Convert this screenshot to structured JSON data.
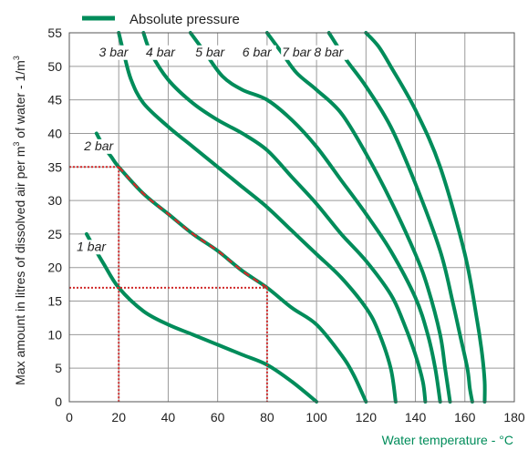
{
  "chart_data": {
    "type": "line",
    "legend": {
      "label": "Absolute pressure",
      "position": "top-left"
    },
    "xlabel": "Water temperature - °C",
    "ylabel_main": "Max amount in litres of dissolved air per m",
    "ylabel_sup": "3",
    "ylabel_rest": " of water - 1/m",
    "ylabel_sup2": "3",
    "xlim": [
      0,
      180
    ],
    "ylim": [
      0,
      55
    ],
    "xticks": [
      "0",
      "20",
      "40",
      "60",
      "80",
      "100",
      "120",
      "140",
      "160",
      "180"
    ],
    "yticks": [
      "0",
      "5",
      "10",
      "15",
      "20",
      "25",
      "30",
      "35",
      "40",
      "45",
      "50",
      "55"
    ],
    "grid": true,
    "series": [
      {
        "name": "1 bar",
        "x": [
          7,
          10,
          14,
          20,
          30,
          40,
          50,
          60,
          70,
          80,
          90,
          100
        ],
        "y": [
          25,
          23,
          20.5,
          17,
          13.5,
          11.5,
          10,
          8.5,
          7,
          5.5,
          3,
          0
        ]
      },
      {
        "name": "2 bar",
        "x": [
          11,
          14,
          17,
          20,
          30,
          40,
          50,
          60,
          70,
          80,
          90,
          100,
          110,
          115,
          120
        ],
        "y": [
          40,
          38,
          36.5,
          35,
          31,
          28,
          25,
          22.5,
          19.5,
          17,
          14,
          11.5,
          7,
          4,
          0
        ]
      },
      {
        "name": "3 bar",
        "x": [
          20,
          22,
          25,
          30,
          40,
          50,
          60,
          70,
          80,
          90,
          100,
          110,
          120,
          125,
          130,
          132
        ],
        "y": [
          55,
          52,
          48,
          44.5,
          41,
          38,
          35,
          32,
          29,
          25.5,
          22,
          18.5,
          14,
          10.5,
          5,
          0
        ]
      },
      {
        "name": "4 bar",
        "x": [
          30,
          33,
          40,
          50,
          60,
          70,
          80,
          90,
          100,
          110,
          120,
          130,
          135,
          140,
          143,
          144
        ],
        "y": [
          55,
          52,
          48,
          44.5,
          42,
          40,
          37.5,
          33.5,
          29.5,
          25,
          21,
          16,
          12,
          7,
          3,
          0
        ]
      },
      {
        "name": "5 bar",
        "x": [
          49,
          55,
          62,
          70,
          80,
          90,
          100,
          110,
          120,
          130,
          140,
          145,
          148,
          150
        ],
        "y": [
          55,
          52,
          48.5,
          46.5,
          45,
          42,
          38,
          33,
          28,
          22.5,
          15.5,
          10,
          5,
          0
        ]
      },
      {
        "name": "6 bar",
        "x": [
          80,
          86,
          92,
          100,
          110,
          120,
          130,
          140,
          145,
          150,
          152,
          154
        ],
        "y": [
          55,
          52,
          49,
          46.5,
          43,
          37,
          30,
          22,
          17,
          10,
          5,
          0
        ]
      },
      {
        "name": "7 bar",
        "x": [
          105,
          112,
          120,
          130,
          140,
          150,
          155,
          158,
          161,
          162,
          163
        ],
        "y": [
          55,
          51,
          47,
          41,
          32.5,
          22.5,
          15,
          10,
          5,
          2,
          0
        ]
      },
      {
        "name": "8 bar",
        "x": [
          120,
          125,
          130,
          140,
          150,
          160,
          165,
          167,
          168,
          168
        ],
        "y": [
          55,
          53,
          50,
          43.5,
          35,
          22,
          12,
          7,
          3,
          0
        ]
      }
    ],
    "series_labels": [
      {
        "text": "1 bar",
        "x": 3,
        "y": 22.5
      },
      {
        "text": "2 bar",
        "x": 6,
        "y": 37.5
      },
      {
        "text": "3 bar",
        "x": 12,
        "y": 51.5
      },
      {
        "text": "4 bar",
        "x": 31,
        "y": 51.5
      },
      {
        "text": "5 bar",
        "x": 51,
        "y": 51.5
      },
      {
        "text": "6 bar",
        "x": 70,
        "y": 51.5
      },
      {
        "text": "7 bar",
        "x": 86,
        "y": 51.5
      },
      {
        "text": "8 bar",
        "x": 99,
        "y": 51.5
      }
    ],
    "annotations": {
      "red_dotted_lines": [
        {
          "from": [
            0,
            35
          ],
          "to": [
            20,
            35
          ]
        },
        {
          "from": [
            20,
            35
          ],
          "to": [
            20,
            0
          ]
        },
        {
          "from": [
            0,
            17
          ],
          "to": [
            80,
            17
          ]
        },
        {
          "from": [
            80,
            17
          ],
          "to": [
            80,
            0
          ]
        }
      ],
      "red_dashed_segment": {
        "series": "2 bar",
        "x_from": 20,
        "x_to": 80
      }
    },
    "colors": {
      "line": "#008c5a",
      "red": "#d02a2a",
      "grid": "#9a9a9a",
      "xlabel": "#008c5a"
    }
  }
}
